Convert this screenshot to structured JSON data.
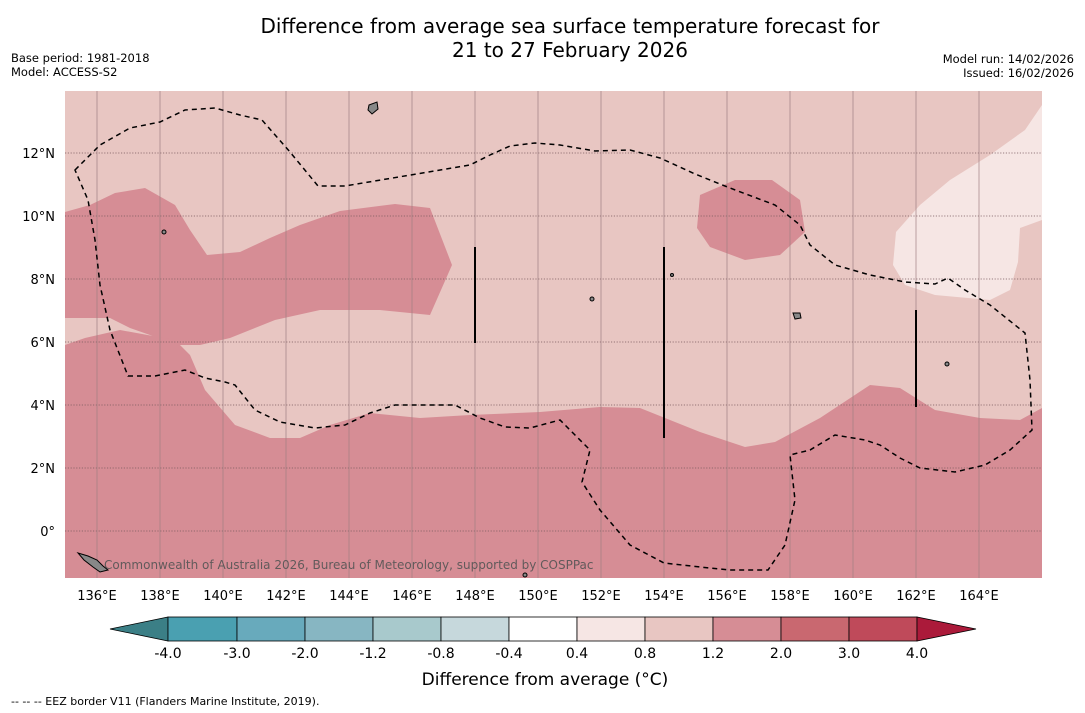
{
  "title": {
    "line1": "Difference from average sea surface temperature forecast for",
    "line2": "21 to 27 February 2026"
  },
  "meta_left": {
    "base_period": "Base period: 1981-2018",
    "model": "Model: ACCESS-S2"
  },
  "meta_right": {
    "model_run": "Model run: 14/02/2026",
    "issued": "Issued: 16/02/2026"
  },
  "map": {
    "x_ticks": [
      "136°E",
      "138°E",
      "140°E",
      "142°E",
      "144°E",
      "146°E",
      "148°E",
      "150°E",
      "152°E",
      "154°E",
      "156°E",
      "158°E",
      "160°E",
      "162°E",
      "164°E"
    ],
    "y_ticks": [
      "12°N",
      "10°N",
      "8°N",
      "6°N",
      "4°N",
      "2°N",
      "0°"
    ],
    "credit": "Commonwealth of Australia 2026, Bureau of Meteorology, supported by COSPPac"
  },
  "colorbar": {
    "labels": [
      "-4.0",
      "-3.0",
      "-2.0",
      "-1.2",
      "-0.8",
      "-0.4",
      "0.4",
      "0.8",
      "1.2",
      "2.0",
      "3.0",
      "4.0"
    ],
    "colors": [
      "#4aa0b1",
      "#68aabc",
      "#87b6c2",
      "#a8c9cc",
      "#c6d8dc",
      "#ffffff",
      "#f6e6e4",
      "#e8c6c2",
      "#d68d95",
      "#c96870",
      "#bf4a5a"
    ],
    "under_color": "#3b7f86",
    "over_color": "#ab1a3a",
    "title": "Difference from average (°C)"
  },
  "footnote": "--  --  -- EEZ border V11 (Flanders Marine Institute, 2019)."
}
